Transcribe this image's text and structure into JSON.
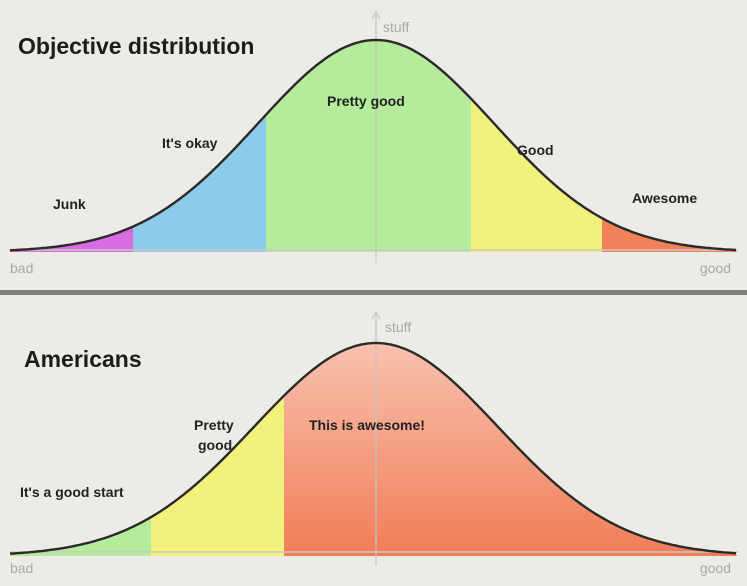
{
  "colors": {
    "background": "#ecebe6",
    "divider": "#808080",
    "curve": "#2a2a2a",
    "axis_line": "#c9c9c4",
    "magenta": "#d86ce0",
    "sky_blue": "#8ccbe9",
    "green": "#b4ec9b",
    "yellow": "#f2f17c",
    "orange": "#f08159",
    "peach": "#f8c2ac"
  },
  "top": {
    "title": "Objective distribution",
    "axis": {
      "y_label": "stuff",
      "left_label": "bad",
      "right_label": "good"
    },
    "segments": [
      {
        "label": "Junk",
        "color": "magenta"
      },
      {
        "label": "It's okay",
        "color": "sky_blue"
      },
      {
        "label": "Pretty good",
        "color": "green"
      },
      {
        "label": "Good",
        "color": "yellow"
      },
      {
        "label": "Awesome",
        "color": "orange"
      }
    ]
  },
  "bottom": {
    "title": "Americans",
    "axis": {
      "y_label": "stuff",
      "left_label": "bad",
      "right_label": "good"
    },
    "segments": [
      {
        "label": "It's a good start",
        "color": "green"
      },
      {
        "label_lines": [
          "Pretty",
          "good"
        ],
        "color": "yellow"
      },
      {
        "label": "This is awesome!",
        "color": "peach"
      }
    ]
  }
}
